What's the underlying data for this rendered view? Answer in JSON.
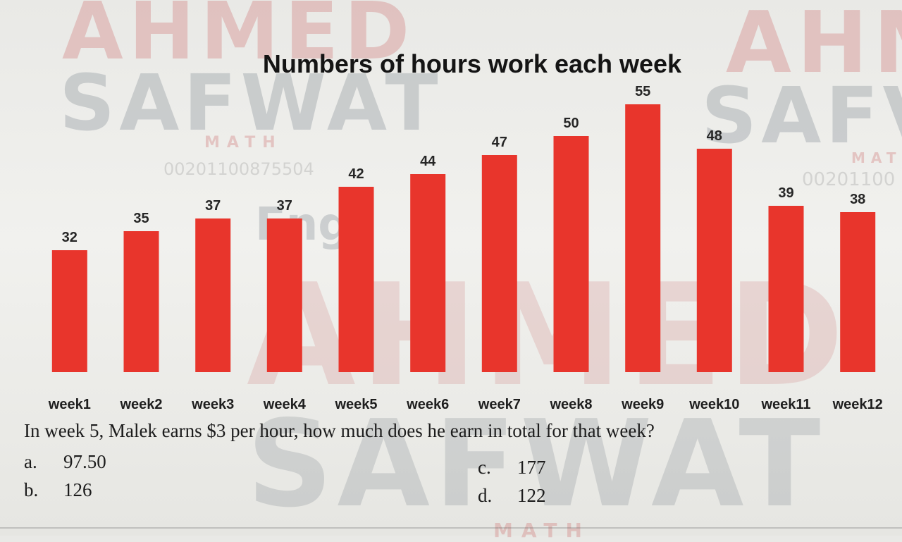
{
  "watermarks": {
    "ahmed_main": "AHMED",
    "safwat_main": "SAFWAT",
    "ahmed_right": "AHM",
    "safwat_right": "SAFV",
    "math_left": "MATH",
    "math_right": "MAT",
    "phone_left": "00201100875504",
    "phone_right": "00201100",
    "eng": "Eng.",
    "ahmed_center": "AHMED",
    "safwat_center": "SAFWAT",
    "math_bottom": "MATH"
  },
  "chart_data": {
    "type": "bar",
    "title": "Numbers of hours work each week",
    "categories": [
      "week1",
      "week2",
      "week3",
      "week4",
      "week5",
      "week6",
      "week7",
      "week8",
      "week9",
      "week10",
      "week11",
      "week12"
    ],
    "values": [
      32,
      35,
      37,
      37,
      42,
      44,
      47,
      50,
      55,
      48,
      39,
      38
    ],
    "xlabel": "",
    "ylabel": "",
    "bar_color": "#e8352c",
    "data_labels": true,
    "grid": false,
    "legend": "none"
  },
  "question": {
    "text": "In week 5, Malek earns $3 per hour, how much does he earn in total for that week?",
    "options": [
      {
        "letter": "a.",
        "value": "97.50"
      },
      {
        "letter": "b.",
        "value": "126"
      },
      {
        "letter": "c.",
        "value": "177"
      },
      {
        "letter": "d.",
        "value": "122"
      }
    ]
  }
}
